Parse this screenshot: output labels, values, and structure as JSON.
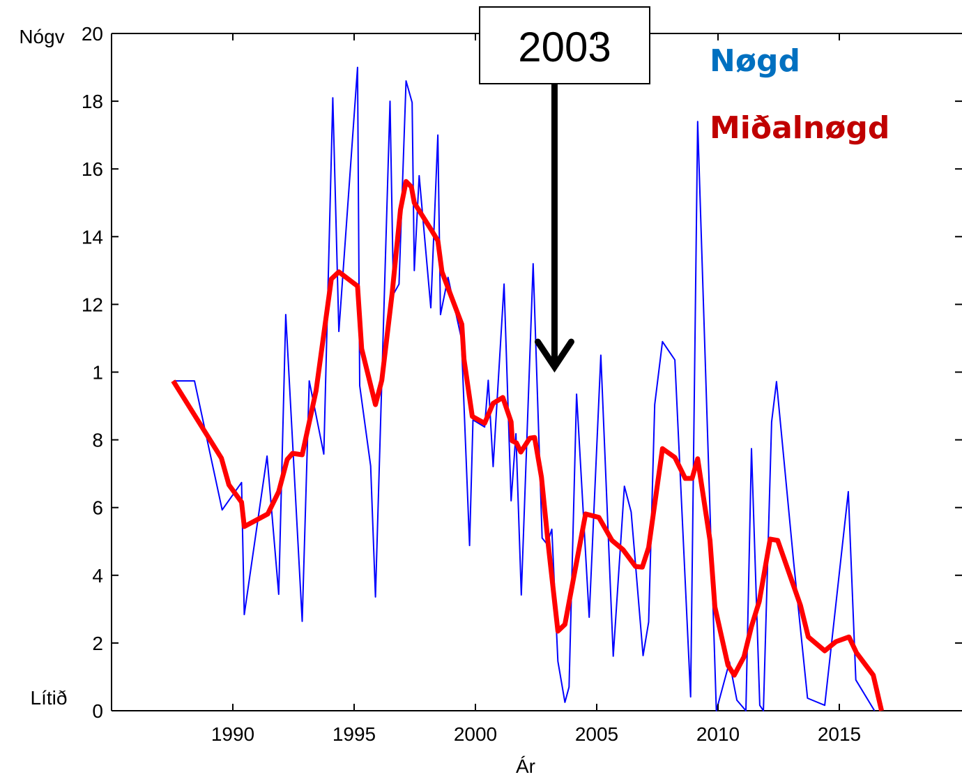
{
  "chart_data": {
    "type": "line",
    "annotation": "2003",
    "annotation_x": 2003.26,
    "ylabel_top": "Nógv",
    "ylabel_bottom": "Lítið",
    "xlabel": "Ár",
    "xlim": [
      1985,
      2020
    ],
    "ylim": [
      0,
      20
    ],
    "xticks": [
      1990,
      1995,
      2000,
      2005,
      2010,
      2015
    ],
    "yticks": [
      0,
      2,
      4,
      6,
      8,
      {
        "value": 10,
        "label": "1"
      },
      12,
      14,
      16,
      18,
      20
    ],
    "grid": false,
    "legend": "upper right",
    "series": [
      {
        "name": "Nøgd",
        "color": "#0000ff",
        "label_color": "#0070c0",
        "width": 2,
        "x": [
          1987.56,
          1988.42,
          1989.56,
          1990.36,
          1990.47,
          1991.41,
          1991.89,
          1992.18,
          1992.86,
          1993.15,
          1993.75,
          1994.12,
          1994.37,
          1995.14,
          1995.23,
          1995.68,
          1995.88,
          1996.48,
          1996.62,
          1996.85,
          1997.14,
          1997.39,
          1997.48,
          1997.68,
          1998.16,
          1998.45,
          1998.56,
          1998.87,
          1999.42,
          1999.76,
          1999.9,
          2000.38,
          2000.53,
          2000.73,
          2001.18,
          2001.47,
          2001.67,
          2001.89,
          2002.38,
          2002.75,
          2002.95,
          2003.15,
          2003.4,
          2003.69,
          2003.86,
          2004.17,
          2004.69,
          2005.17,
          2005.68,
          2006.14,
          2006.42,
          2006.91,
          2007.14,
          2007.39,
          2007.71,
          2008.22,
          2008.87,
          2009.16,
          2009.93,
          2010.47,
          2010.78,
          2011.15,
          2011.38,
          2011.72,
          2011.87,
          2012.21,
          2012.41,
          2013.12,
          2013.69,
          2014.4,
          2015.37,
          2015.68,
          2016.45
        ],
        "values": [
          9.74,
          9.74,
          5.93,
          6.74,
          2.84,
          7.52,
          3.44,
          11.7,
          2.64,
          9.74,
          7.58,
          18.1,
          11.2,
          19.0,
          9.6,
          7.23,
          3.36,
          18.0,
          12.3,
          12.6,
          18.6,
          17.96,
          13.0,
          15.8,
          11.9,
          17.0,
          11.7,
          12.8,
          11.0,
          4.88,
          8.59,
          8.38,
          9.76,
          7.21,
          12.6,
          6.2,
          8.18,
          3.42,
          13.2,
          5.1,
          4.92,
          5.36,
          1.46,
          0.25,
          0.7,
          9.35,
          2.76,
          10.5,
          1.61,
          6.63,
          5.87,
          1.63,
          2.62,
          9.04,
          10.9,
          10.36,
          0.41,
          17.4,
          0,
          1.44,
          0.31,
          0,
          7.74,
          0.16,
          0,
          8.53,
          9.72,
          4.37,
          0.37,
          0.16,
          6.47,
          0.91,
          0
        ]
      },
      {
        "name": "Miðalnøgd",
        "color": "#ff0000",
        "label_color": "#c00000",
        "width": 7,
        "x": [
          1987.54,
          1989.53,
          1989.84,
          1990.36,
          1990.47,
          1991.44,
          1991.89,
          1992.24,
          1992.46,
          1992.86,
          1993.43,
          1994.06,
          1994.37,
          1995.14,
          1995.31,
          1995.88,
          1996.14,
          1996.57,
          1996.91,
          1997.14,
          1997.36,
          1997.48,
          1998.19,
          1998.45,
          1998.62,
          1999.44,
          1999.53,
          1999.87,
          2000.38,
          2000.73,
          2001.13,
          2001.47,
          2001.52,
          2001.69,
          2001.87,
          2002.24,
          2002.44,
          2002.72,
          2003.0,
          2003.4,
          2003.69,
          2004.54,
          2005.09,
          2005.63,
          2006.08,
          2006.6,
          2006.88,
          2007.14,
          2007.71,
          2008.22,
          2008.65,
          2008.93,
          2009.16,
          2009.67,
          2009.87,
          2010.41,
          2010.67,
          2011.07,
          2011.38,
          2011.7,
          2012.15,
          2012.46,
          2013.4,
          2013.72,
          2014.4,
          2014.86,
          2015.4,
          2015.71,
          2016.4,
          2016.74
        ],
        "values": [
          9.74,
          7.46,
          6.67,
          6.16,
          5.44,
          5.81,
          6.47,
          7.42,
          7.6,
          7.56,
          9.45,
          12.75,
          12.96,
          12.54,
          10.69,
          9.04,
          9.76,
          12.34,
          14.8,
          15.63,
          15.47,
          15.0,
          14.19,
          13.88,
          12.96,
          11.41,
          10.38,
          8.69,
          8.49,
          9.08,
          9.25,
          8.53,
          7.97,
          7.91,
          7.64,
          8.05,
          8.07,
          6.9,
          4.92,
          2.35,
          2.55,
          5.81,
          5.71,
          5.03,
          4.76,
          4.26,
          4.24,
          4.82,
          7.74,
          7.48,
          6.86,
          6.86,
          7.44,
          5.03,
          3.07,
          1.34,
          1.05,
          1.59,
          2.49,
          3.23,
          5.07,
          5.03,
          3.11,
          2.18,
          1.77,
          2.04,
          2.18,
          1.71,
          1.05,
          0
        ]
      }
    ]
  }
}
